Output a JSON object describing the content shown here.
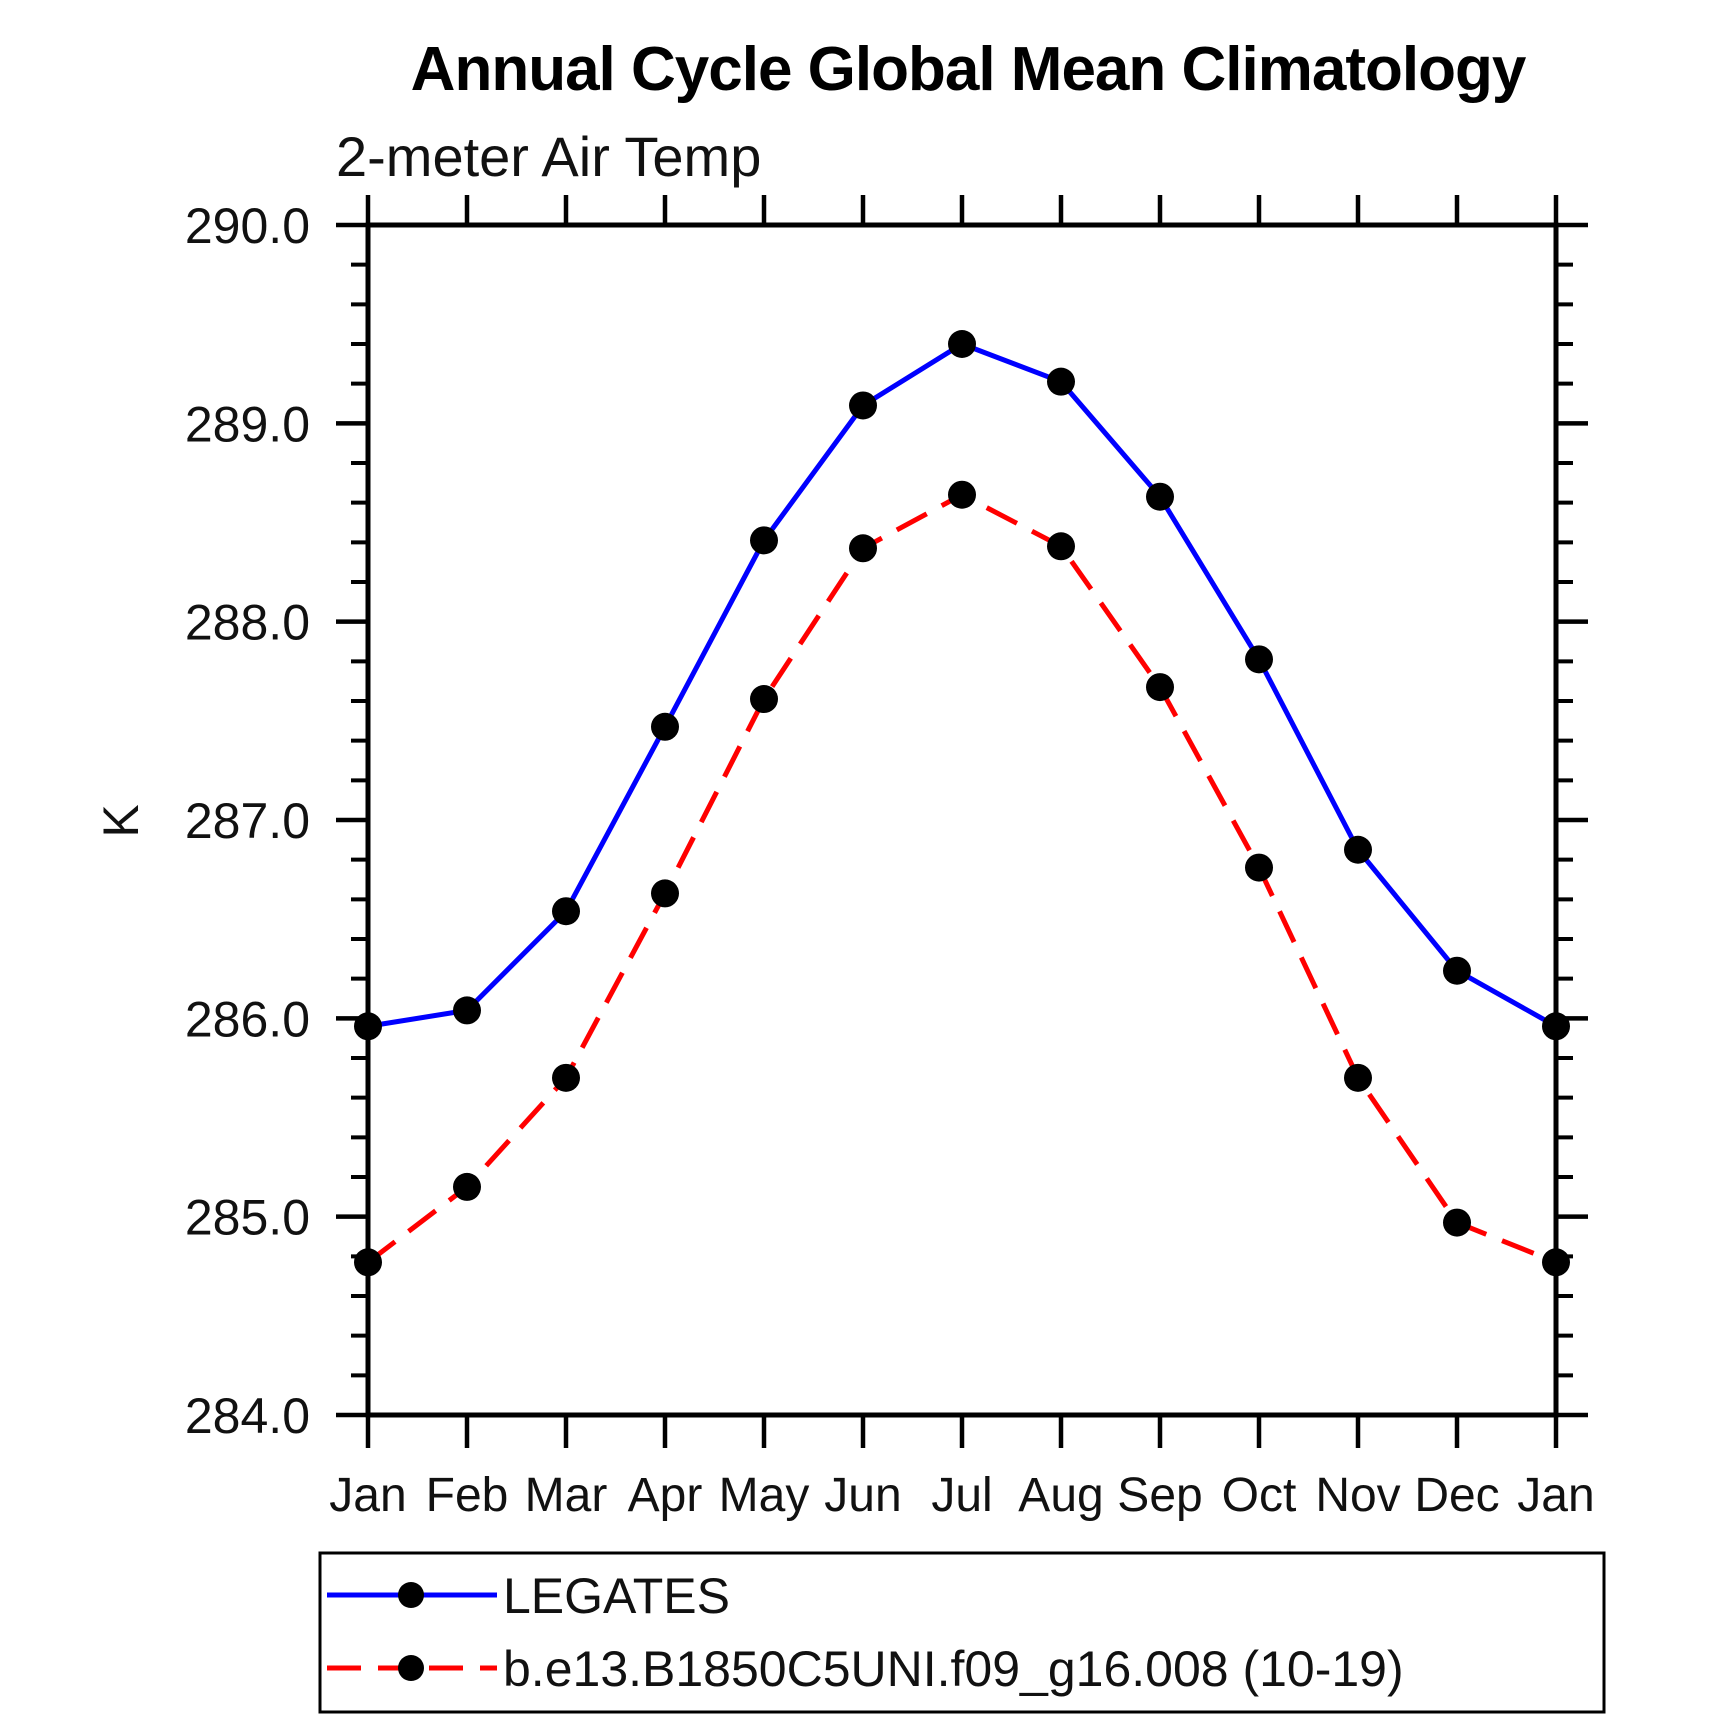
{
  "page": {
    "background_color": "#ffffff",
    "axis_color": "#000000",
    "text_color": "#111111"
  },
  "header": {
    "title": "Annual Cycle Global Mean Climatology",
    "subtitle": "2-meter Air Temp"
  },
  "legend": {
    "entries": [
      {
        "label": "LEGATES",
        "line_color": "#0000ff",
        "line_style": "solid",
        "marker": "filled-circle",
        "marker_color": "#000000"
      },
      {
        "label": "b.e13.B1850C5UNI.f09_g16.008 (10-19)",
        "line_color": "#ff0000",
        "line_style": "dashed",
        "marker": "filled-circle",
        "marker_color": "#000000"
      }
    ]
  },
  "chart_data": {
    "type": "line",
    "title": "Annual Cycle Global Mean Climatology",
    "subtitle": "2-meter Air Temp",
    "xlabel": "",
    "ylabel": "K",
    "x_categories": [
      "Jan",
      "Feb",
      "Mar",
      "Apr",
      "May",
      "Jun",
      "Jul",
      "Aug",
      "Sep",
      "Oct",
      "Nov",
      "Dec",
      "Jan"
    ],
    "ylim": [
      284.0,
      290.0
    ],
    "y_major_tick_step": 1.0,
    "y_minor_tick_step": 0.2,
    "y_tick_labels": [
      "290.0",
      "289.0",
      "288.0",
      "287.0",
      "286.0",
      "285.0",
      "284.0"
    ],
    "y_tick_values": [
      290.0,
      289.0,
      288.0,
      287.0,
      286.0,
      285.0,
      284.0
    ],
    "grid": false,
    "legend_position": "bottom-left-box",
    "series": [
      {
        "name": "LEGATES",
        "line_color": "#0000ff",
        "line_style": "solid",
        "marker": "circle",
        "marker_color": "#000000",
        "values": [
          285.96,
          286.04,
          286.54,
          287.47,
          288.41,
          289.09,
          289.4,
          289.21,
          288.63,
          287.81,
          286.85,
          286.24,
          285.96
        ]
      },
      {
        "name": "b.e13.B1850C5UNI.f09_g16.008 (10-19)",
        "line_color": "#ff0000",
        "line_style": "dashed",
        "marker": "circle",
        "marker_color": "#000000",
        "values": [
          284.77,
          285.15,
          285.7,
          286.63,
          287.61,
          288.37,
          288.64,
          288.38,
          287.67,
          286.76,
          285.7,
          284.97,
          284.77
        ]
      }
    ]
  }
}
